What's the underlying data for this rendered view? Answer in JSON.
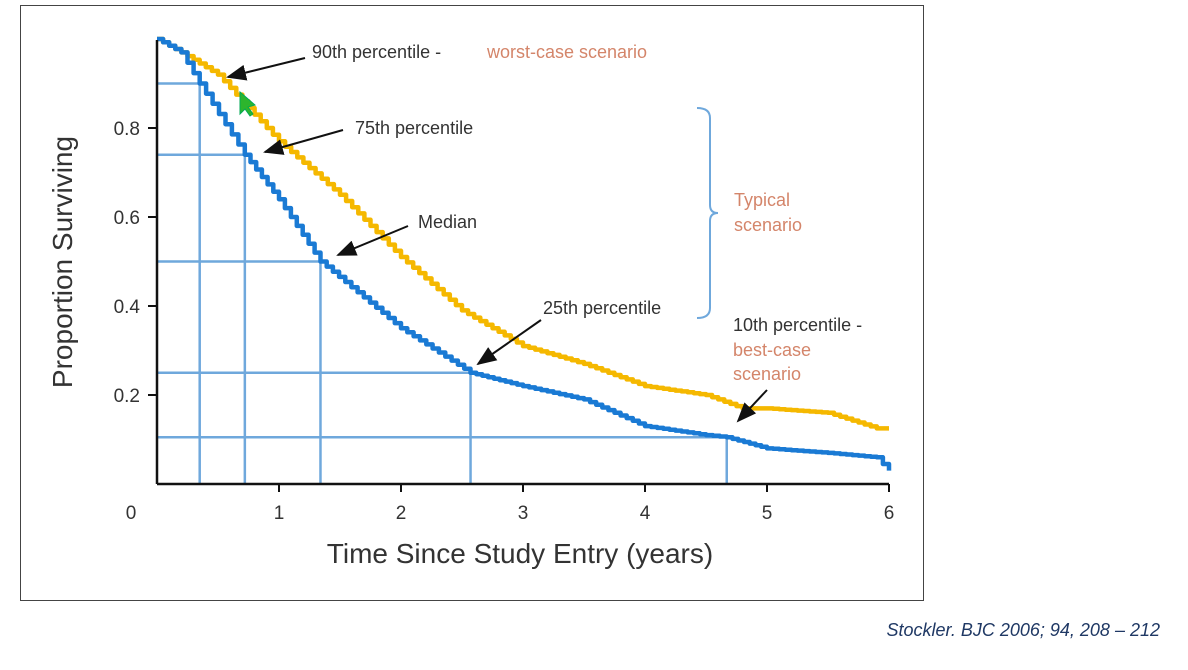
{
  "chart_data": {
    "type": "line",
    "xlabel": "Time Since Study Entry (years)",
    "ylabel": "Proportion Surviving",
    "xlim": [
      0,
      6
    ],
    "ylim": [
      0,
      1
    ],
    "x_ticks": [
      "0",
      "1",
      "2",
      "3",
      "4",
      "5",
      "6"
    ],
    "y_ticks": [
      "0.2",
      "0.4",
      "0.6",
      "0.8"
    ],
    "grid": false,
    "series": [
      {
        "color": "#f5b800",
        "x": [
          0,
          0.2,
          0.5,
          1.0,
          1.5,
          2.0,
          2.5,
          3.0,
          3.5,
          4.0,
          4.5,
          4.8,
          5.0,
          5.5,
          5.9,
          6.0
        ],
        "y": [
          1.0,
          0.97,
          0.92,
          0.77,
          0.65,
          0.51,
          0.39,
          0.31,
          0.27,
          0.22,
          0.2,
          0.17,
          0.17,
          0.16,
          0.125,
          0.125
        ]
      },
      {
        "color": "#1a7ad4",
        "x": [
          0,
          0.2,
          0.35,
          0.72,
          1.0,
          1.34,
          2.0,
          2.57,
          3.0,
          3.5,
          4.0,
          4.5,
          4.67,
          5.0,
          5.5,
          5.9,
          6.0
        ],
        "y": [
          1.0,
          0.97,
          0.9,
          0.74,
          0.64,
          0.5,
          0.35,
          0.25,
          0.22,
          0.19,
          0.13,
          0.11,
          0.105,
          0.08,
          0.07,
          0.06,
          0.03
        ]
      }
    ],
    "percentile_guides": [
      {
        "y": 0.9,
        "x": 0.35
      },
      {
        "y": 0.74,
        "x": 0.72
      },
      {
        "y": 0.5,
        "x": 1.34
      },
      {
        "y": 0.25,
        "x": 2.57
      },
      {
        "y": 0.105,
        "x": 4.67
      }
    ],
    "guide_color": "#6fa8dc",
    "annotations": {
      "p90": "90th percentile -",
      "p90_note": "worst-case scenario",
      "p75": "75th percentile",
      "median": "Median",
      "p25": "25th percentile",
      "p10": "10th percentile -",
      "p10_note_1": "best-case",
      "p10_note_2": "scenario",
      "typical_1": "Typical",
      "typical_2": "scenario"
    }
  },
  "citation": "Stockler. BJC 2006; 94, 208 – 212"
}
